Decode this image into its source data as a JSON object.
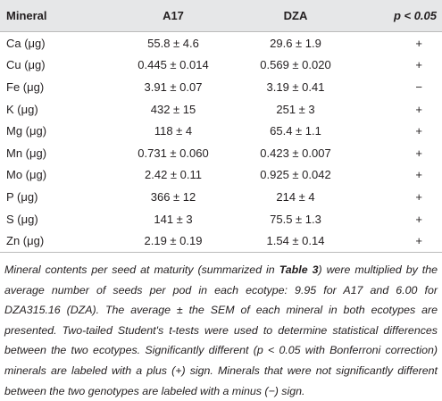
{
  "table": {
    "header": [
      "Mineral",
      "A17",
      "DZA",
      "p < 0.05"
    ],
    "rows": [
      [
        "Ca (μg)",
        "55.8 ± 4.6",
        "29.6 ± 1.9",
        "+"
      ],
      [
        "Cu (μg)",
        "0.445 ± 0.014",
        "0.569 ± 0.020",
        "+"
      ],
      [
        "Fe (μg)",
        "3.91 ± 0.07",
        "3.19 ± 0.41",
        "−"
      ],
      [
        "K (μg)",
        "432 ± 15",
        "251 ± 3",
        "+"
      ],
      [
        "Mg (μg)",
        "118 ± 4",
        "65.4 ± 1.1",
        "+"
      ],
      [
        "Mn (μg)",
        "0.731 ± 0.060",
        "0.423 ± 0.007",
        "+"
      ],
      [
        "Mo (μg)",
        "2.42 ± 0.11",
        "0.925 ± 0.042",
        "+"
      ],
      [
        "P (μg)",
        "366 ± 12",
        "214 ± 4",
        "+"
      ],
      [
        "S (μg)",
        "141 ± 3",
        "75.5 ± 1.3",
        "+"
      ],
      [
        "Zn (μg)",
        "2.19 ± 0.19",
        "1.54 ± 0.14",
        "+"
      ]
    ]
  },
  "caption": [
    "Mineral contents per seed at maturity (summarized in ",
    "Table 3",
    ") were multiplied by the average number of seeds per pod in each ecotype: 9.95 for A17 and 6.00 for DZA315.16 (DZA). The average ± the SEM of each mineral in both ecotypes are presented. Two-tailed Student's t-tests were used to determine statistical differences between the two ecotypes. Significantly different (",
    "p",
    " < 0.05 with Bonferroni correction) minerals are labeled with a plus (+) sign. Minerals that were not significantly different between the two genotypes are labeled with a minus (−) sign."
  ]
}
